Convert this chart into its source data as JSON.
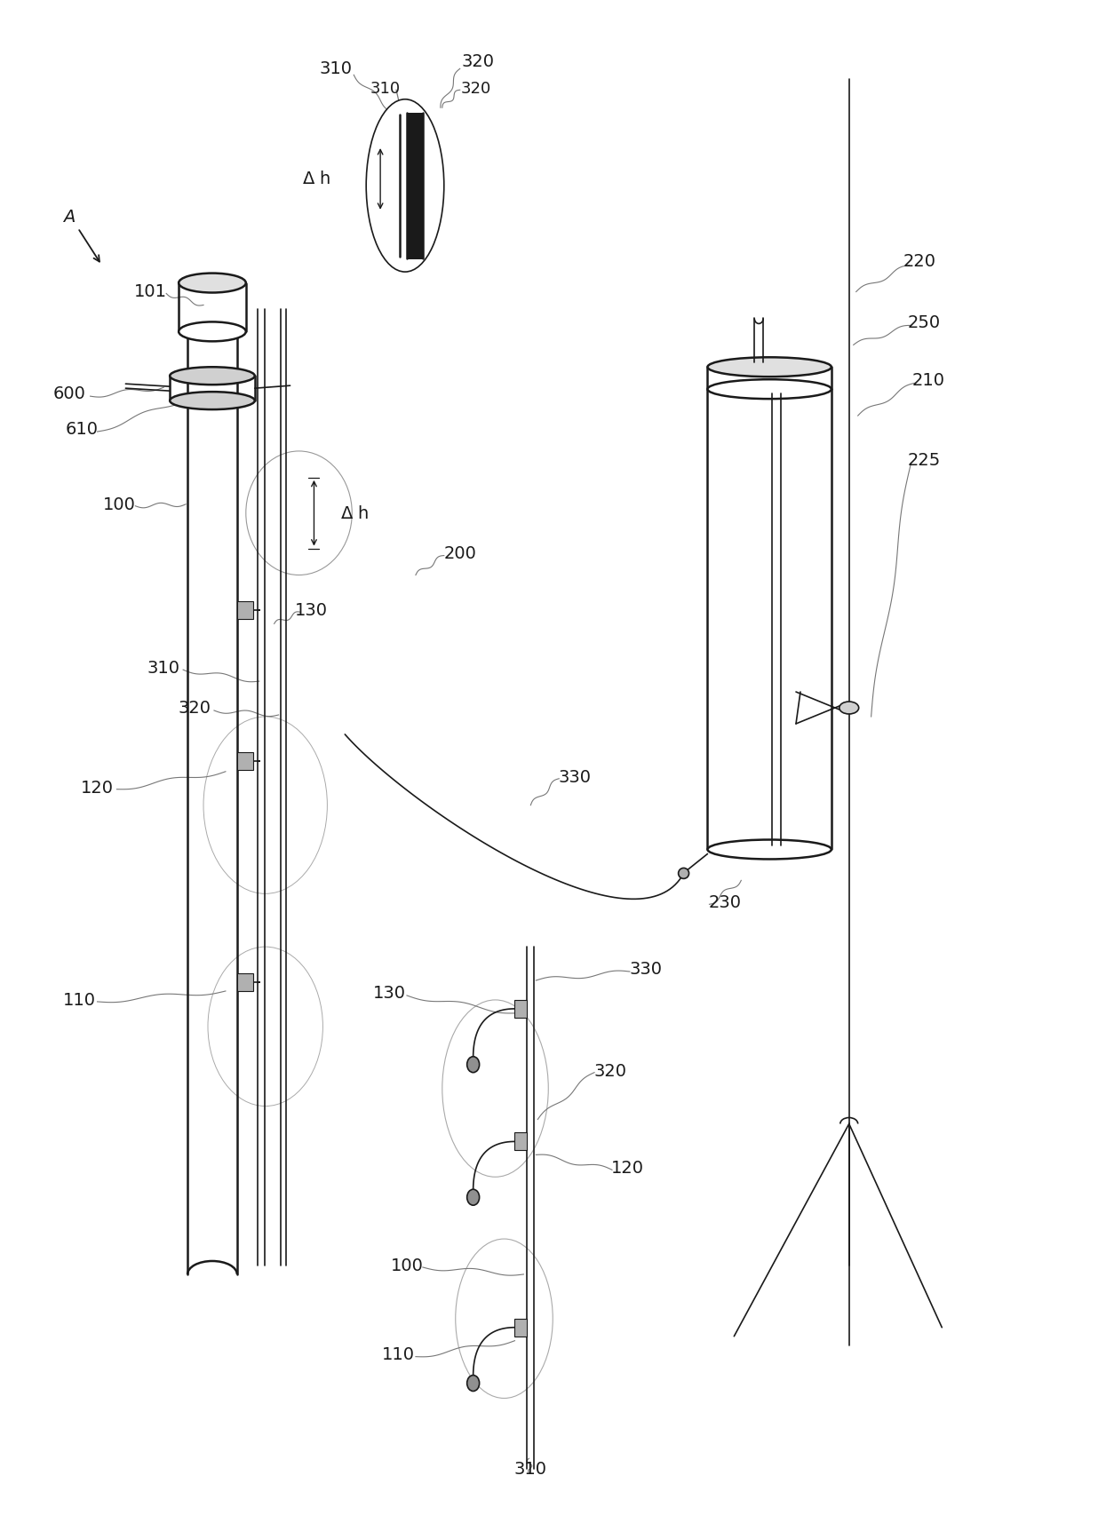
{
  "bg_color": "#ffffff",
  "lc": "#1a1a1a",
  "gray": "#777777",
  "fig_width": 12.4,
  "fig_height": 17.19,
  "dpi": 100
}
